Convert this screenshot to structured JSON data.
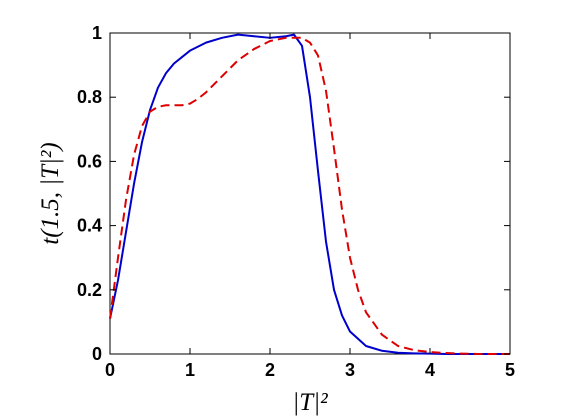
{
  "chart_data": {
    "type": "line",
    "title": "",
    "xlabel": "|T|²",
    "ylabel": "t(1.5, |T|²)",
    "xlim": [
      0,
      5
    ],
    "ylim": [
      0,
      1
    ],
    "xticks": [
      0,
      1,
      2,
      3,
      4,
      5
    ],
    "yticks": [
      0,
      0.2,
      0.4,
      0.6,
      0.8,
      1
    ],
    "xtick_labels": [
      "0",
      "1",
      "2",
      "3",
      "4",
      "5"
    ],
    "ytick_labels": [
      "0",
      "0.2",
      "0.4",
      "0.6",
      "0.8",
      "1"
    ],
    "grid": false,
    "legend": "none",
    "series": [
      {
        "color": "#0000cc",
        "style": "solid",
        "x": [
          0,
          0.1,
          0.2,
          0.3,
          0.4,
          0.5,
          0.6,
          0.7,
          0.8,
          0.9,
          1.0,
          1.2,
          1.4,
          1.6,
          1.8,
          2.0,
          2.2,
          2.3,
          2.4,
          2.5,
          2.6,
          2.7,
          2.8,
          2.9,
          3.0,
          3.2,
          3.4,
          3.6,
          3.8,
          4.0,
          4.2,
          4.4,
          4.6,
          4.8,
          5.0
        ],
        "y": [
          0.11,
          0.23,
          0.38,
          0.53,
          0.66,
          0.76,
          0.83,
          0.875,
          0.905,
          0.925,
          0.945,
          0.97,
          0.985,
          0.995,
          0.99,
          0.985,
          0.99,
          0.995,
          0.96,
          0.8,
          0.57,
          0.35,
          0.2,
          0.12,
          0.07,
          0.025,
          0.01,
          0.004,
          0.002,
          0.001,
          0,
          0,
          0,
          0,
          0
        ]
      },
      {
        "color": "#dd0000",
        "style": "dashed",
        "x": [
          0,
          0.1,
          0.2,
          0.3,
          0.4,
          0.5,
          0.6,
          0.7,
          0.8,
          0.9,
          1.0,
          1.1,
          1.2,
          1.4,
          1.6,
          1.8,
          2.0,
          2.2,
          2.4,
          2.5,
          2.6,
          2.7,
          2.8,
          2.9,
          3.0,
          3.1,
          3.2,
          3.4,
          3.6,
          3.8,
          4.0,
          4.2,
          4.4,
          4.6,
          4.8,
          5.0
        ],
        "y": [
          0.11,
          0.3,
          0.48,
          0.62,
          0.71,
          0.755,
          0.77,
          0.775,
          0.775,
          0.775,
          0.78,
          0.795,
          0.815,
          0.865,
          0.915,
          0.95,
          0.975,
          0.985,
          0.985,
          0.97,
          0.93,
          0.82,
          0.64,
          0.45,
          0.3,
          0.2,
          0.13,
          0.06,
          0.025,
          0.012,
          0.006,
          0.003,
          0.001,
          0,
          0,
          0
        ]
      }
    ]
  }
}
